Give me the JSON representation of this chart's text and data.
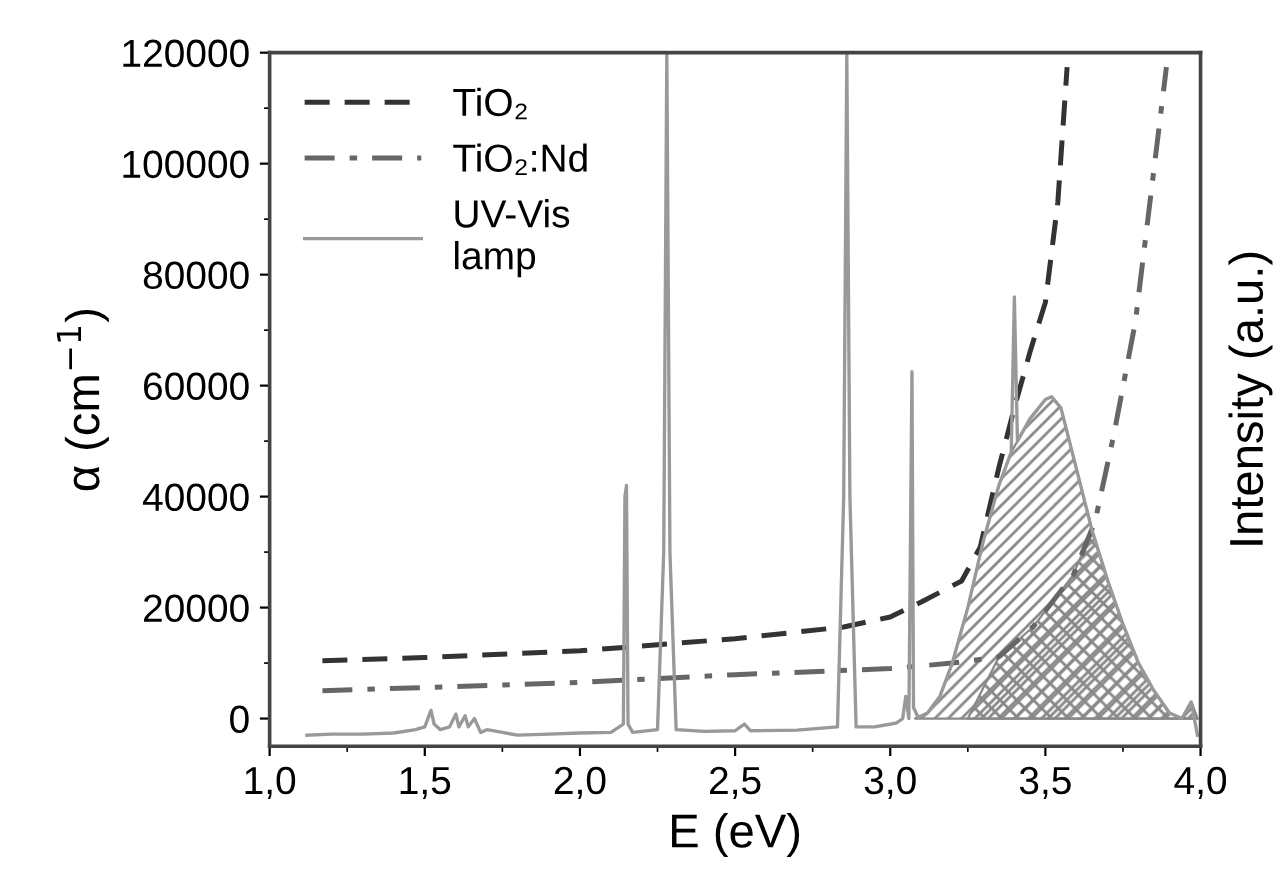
{
  "chart_data": {
    "type": "line",
    "xlabel": "E (eV)",
    "ylabel": "α (cm$^{−1}$)",
    "y2label": "Intensity (a.u.)",
    "xlim": [
      1.0,
      4.0
    ],
    "xticks": [
      {
        "value": 1.0,
        "label": "1,0"
      },
      {
        "value": 1.5,
        "label": "1,5"
      },
      {
        "value": 2.0,
        "label": "2,0"
      },
      {
        "value": 2.5,
        "label": "2,5"
      },
      {
        "value": 3.0,
        "label": "3,0"
      },
      {
        "value": 3.5,
        "label": "3,5"
      },
      {
        "value": 4.0,
        "label": "4,0"
      }
    ],
    "ylim": [
      -5000,
      120000
    ],
    "yticks": [
      0,
      20000,
      40000,
      60000,
      80000,
      100000,
      120000
    ],
    "grid": false,
    "legend": "top left",
    "series": [
      {
        "name": "TiO₂",
        "color": "#333333",
        "line_style": "dashed",
        "x": [
          1.17,
          1.5,
          2.0,
          2.5,
          2.85,
          3.0,
          3.1,
          3.23,
          3.29,
          3.35,
          3.4,
          3.45,
          3.5,
          3.54,
          3.57
        ],
        "values": [
          10400,
          11000,
          12200,
          14400,
          16500,
          18300,
          21000,
          24800,
          30900,
          45200,
          56000,
          66000,
          75000,
          93000,
          117400
        ]
      },
      {
        "name": "TiO₂:Nd",
        "color": "#666666",
        "line_style": "dashdot",
        "x": [
          1.17,
          1.5,
          2.0,
          2.5,
          3.0,
          3.2,
          3.35,
          3.46,
          3.59,
          3.66,
          3.72,
          3.79,
          3.89
        ],
        "values": [
          5000,
          5600,
          6500,
          7900,
          9000,
          10000,
          11100,
          16500,
          25900,
          35500,
          51000,
          71500,
          117400
        ]
      },
      {
        "name": "UV-Vis\nlamp",
        "color": "#999999",
        "line_style": "solid",
        "x": [
          1.12,
          1.2,
          1.3,
          1.4,
          1.47,
          1.5,
          1.52,
          1.53,
          1.55,
          1.58,
          1.6,
          1.61,
          1.63,
          1.64,
          1.66,
          1.68,
          1.7,
          1.75,
          1.8,
          1.9,
          2.0,
          2.1,
          2.14,
          2.145,
          2.15,
          2.155,
          2.17,
          2.25,
          2.27,
          2.28,
          2.29,
          2.31,
          2.4,
          2.5,
          2.53,
          2.55,
          2.7,
          2.83,
          2.85,
          2.86,
          2.87,
          2.89,
          2.95,
          3.02,
          3.04,
          3.05,
          3.06,
          3.07,
          3.075,
          3.09,
          3.12,
          3.16,
          3.2,
          3.25,
          3.3,
          3.35,
          3.39,
          3.4,
          3.41,
          3.45,
          3.5,
          3.52,
          3.55,
          3.6,
          3.65,
          3.7,
          3.75,
          3.8,
          3.85,
          3.9,
          3.94,
          3.97,
          3.99
        ],
        "values": [
          -3000,
          -2800,
          -2800,
          -2600,
          -2000,
          -1500,
          1500,
          -1000,
          -2000,
          -1500,
          800,
          -1500,
          500,
          -1500,
          0,
          -2500,
          -2000,
          -2500,
          -3000,
          -2800,
          -2600,
          -2500,
          -1000,
          40000,
          42000,
          -1000,
          -2500,
          -2000,
          30000,
          120000,
          30000,
          -2000,
          -2300,
          -2200,
          -1000,
          -2200,
          -2100,
          -1500,
          40000,
          120000,
          40000,
          -1500,
          -1500,
          -800,
          0,
          4000,
          0,
          62500,
          2000,
          200,
          1000,
          4000,
          10000,
          20000,
          32000,
          42000,
          48000,
          76000,
          50000,
          54000,
          57500,
          58000,
          56000,
          45000,
          34000,
          25000,
          17000,
          10000,
          5000,
          1000,
          0,
          3000,
          -3000
        ]
      },
      {
        "type": "area",
        "color": "#888888",
        "x": [
          3.08,
          3.12,
          3.16,
          3.2,
          3.25,
          3.3,
          3.35,
          3.39,
          3.41,
          3.45,
          3.5,
          3.52,
          3.55,
          3.6,
          3.65,
          3.7,
          3.75,
          3.8,
          3.85,
          3.9,
          3.94,
          3.97,
          3.99
        ],
        "values": [
          0,
          1000,
          4000,
          10000,
          20000,
          32000,
          42000,
          48000,
          50000,
          54000,
          57500,
          58000,
          56000,
          45000,
          34000,
          25000,
          17000,
          10000,
          5000,
          1000,
          0,
          3000,
          0
        ]
      },
      {
        "type": "area",
        "color": "#888888",
        "x": [
          3.25,
          3.35,
          3.46,
          3.59,
          3.65,
          3.7,
          3.75,
          3.8,
          3.85,
          3.9,
          3.94,
          3.97,
          3.99
        ],
        "values": [
          0,
          11100,
          16500,
          25900,
          34000,
          25000,
          17000,
          10000,
          5000,
          1000,
          0,
          3000,
          0
        ]
      }
    ]
  }
}
